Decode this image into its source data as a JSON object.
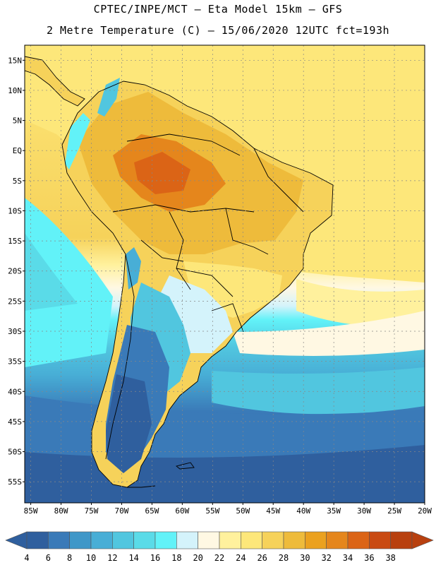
{
  "header": {
    "title_line1": "CPTEC/INPE/MCT –  Eta Model 15km – GFS",
    "title_line2": "2 Metre Temperature (C) – 15/06/2020 12UTC fct=193h"
  },
  "map": {
    "lat_labels": [
      "15N",
      "10N",
      "5N",
      "EQ",
      "5S",
      "10S",
      "15S",
      "20S",
      "25S",
      "30S",
      "35S",
      "40S",
      "45S",
      "50S",
      "55S"
    ],
    "lat_values": [
      15,
      10,
      5,
      0,
      -5,
      -10,
      -15,
      -20,
      -25,
      -30,
      -35,
      -40,
      -45,
      -50,
      -55
    ],
    "lon_labels": [
      "85W",
      "80W",
      "75W",
      "70W",
      "65W",
      "60W",
      "55W",
      "50W",
      "45W",
      "40W",
      "35W",
      "30W",
      "25W",
      "20W"
    ],
    "lon_values": [
      -85,
      -80,
      -75,
      -70,
      -65,
      -60,
      -55,
      -50,
      -45,
      -40,
      -35,
      -30,
      -25,
      -20
    ],
    "lat_range": [
      -58.5,
      17.5
    ],
    "lon_range": [
      -86,
      -20
    ]
  },
  "colorbar": {
    "labels": [
      "4",
      "6",
      "8",
      "10",
      "12",
      "14",
      "16",
      "18",
      "20",
      "22",
      "24",
      "26",
      "28",
      "30",
      "32",
      "34",
      "36",
      "38"
    ],
    "colors": [
      "#2f5f9e",
      "#3a7ab8",
      "#3f97c8",
      "#48aed6",
      "#51c6df",
      "#5adbe8",
      "#62f2f8",
      "#d4f3fb",
      "#fff8e3",
      "#fff19d",
      "#fde77a",
      "#f6d25a",
      "#eebb3b",
      "#eba11f",
      "#e5861c",
      "#db6416",
      "#c94a12",
      "#b8400f"
    ],
    "unit": "C"
  }
}
